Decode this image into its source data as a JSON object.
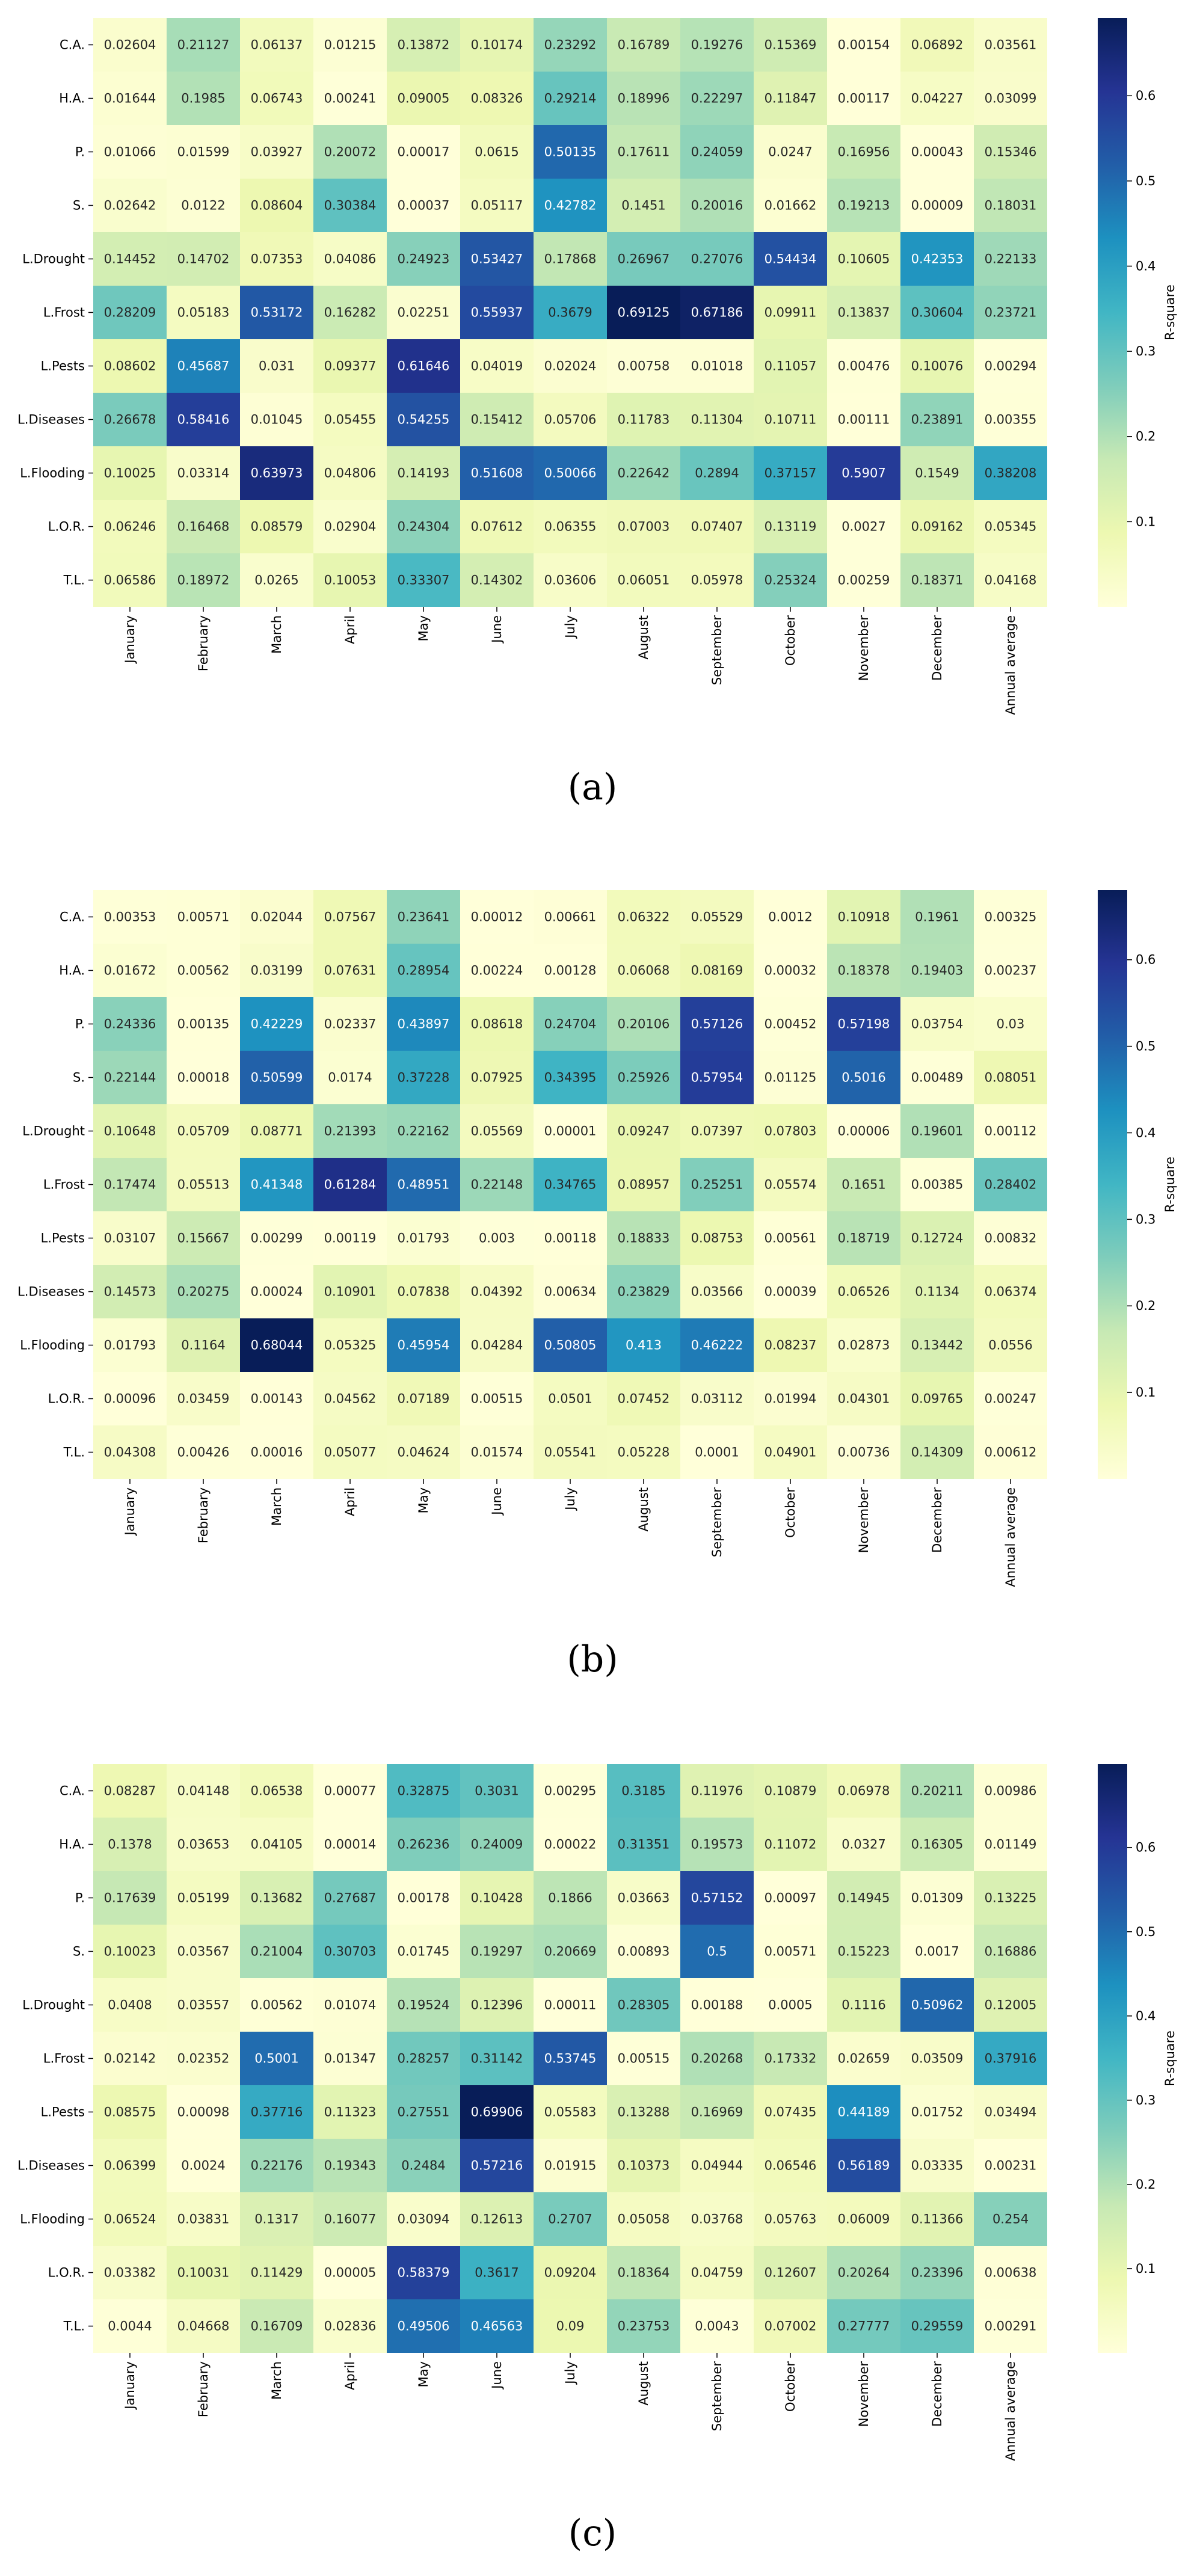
{
  "rows": [
    "C.A.",
    "H.A.",
    "P.",
    "S.",
    "L.Drought",
    "L.Frost",
    "L.Pests",
    "L.Diseases",
    "L.Flooding",
    "L.O.R.",
    "T.L."
  ],
  "columns": [
    "January",
    "February",
    "March",
    "April",
    "May",
    "June",
    "July",
    "August",
    "September",
    "October",
    "November",
    "December",
    "Annual average"
  ],
  "colorbar_label": "R-square",
  "colorbar_ticks": [
    "0.1",
    "0.2",
    "0.3",
    "0.4",
    "0.5",
    "0.6"
  ],
  "colors": {
    "low": "#ffffd9",
    "high": "#081d58"
  },
  "chart_data": [
    {
      "type": "heatmap",
      "caption": "(a)",
      "vmin": 0,
      "vmax": 0.69125,
      "values": [
        [
          "0.02604",
          "0.21127",
          "0.06137",
          "0.01215",
          "0.13872",
          "0.10174",
          "0.23292",
          "0.16789",
          "0.19276",
          "0.15369",
          "0.00154",
          "0.06892",
          "0.03561"
        ],
        [
          "0.01644",
          "0.1985",
          "0.06743",
          "0.00241",
          "0.09005",
          "0.08326",
          "0.29214",
          "0.18996",
          "0.22297",
          "0.11847",
          "0.00117",
          "0.04227",
          "0.03099"
        ],
        [
          "0.01066",
          "0.01599",
          "0.03927",
          "0.20072",
          "0.00017",
          "0.0615",
          "0.50135",
          "0.17611",
          "0.24059",
          "0.0247",
          "0.16956",
          "0.00043",
          "0.15346"
        ],
        [
          "0.02642",
          "0.0122",
          "0.08604",
          "0.30384",
          "0.00037",
          "0.05117",
          "0.42782",
          "0.1451",
          "0.20016",
          "0.01662",
          "0.19213",
          "0.00009",
          "0.18031"
        ],
        [
          "0.14452",
          "0.14702",
          "0.07353",
          "0.04086",
          "0.24923",
          "0.53427",
          "0.17868",
          "0.26967",
          "0.27076",
          "0.54434",
          "0.10605",
          "0.42353",
          "0.22133"
        ],
        [
          "0.28209",
          "0.05183",
          "0.53172",
          "0.16282",
          "0.02251",
          "0.55937",
          "0.3679",
          "0.69125",
          "0.67186",
          "0.09911",
          "0.13837",
          "0.30604",
          "0.23721"
        ],
        [
          "0.08602",
          "0.45687",
          "0.031",
          "0.09377",
          "0.61646",
          "0.04019",
          "0.02024",
          "0.00758",
          "0.01018",
          "0.11057",
          "0.00476",
          "0.10076",
          "0.00294"
        ],
        [
          "0.26678",
          "0.58416",
          "0.01045",
          "0.05455",
          "0.54255",
          "0.15412",
          "0.05706",
          "0.11783",
          "0.11304",
          "0.10711",
          "0.00111",
          "0.23891",
          "0.00355"
        ],
        [
          "0.10025",
          "0.03314",
          "0.63973",
          "0.04806",
          "0.14193",
          "0.51608",
          "0.50066",
          "0.22642",
          "0.2894",
          "0.37157",
          "0.5907",
          "0.1549",
          "0.38208"
        ],
        [
          "0.06246",
          "0.16468",
          "0.08579",
          "0.02904",
          "0.24304",
          "0.07612",
          "0.06355",
          "0.07003",
          "0.07407",
          "0.13119",
          "0.0027",
          "0.09162",
          "0.05345"
        ],
        [
          "0.06586",
          "0.18972",
          "0.0265",
          "0.10053",
          "0.33307",
          "0.14302",
          "0.03606",
          "0.06051",
          "0.05978",
          "0.25324",
          "0.00259",
          "0.18371",
          "0.04168"
        ]
      ]
    },
    {
      "type": "heatmap",
      "caption": "(b)",
      "vmin": 0,
      "vmax": 0.68044,
      "values": [
        [
          "0.00353",
          "0.00571",
          "0.02044",
          "0.07567",
          "0.23641",
          "0.00012",
          "0.00661",
          "0.06322",
          "0.05529",
          "0.0012",
          "0.10918",
          "0.1961",
          "0.00325"
        ],
        [
          "0.01672",
          "0.00562",
          "0.03199",
          "0.07631",
          "0.28954",
          "0.00224",
          "0.00128",
          "0.06068",
          "0.08169",
          "0.00032",
          "0.18378",
          "0.19403",
          "0.00237"
        ],
        [
          "0.24336",
          "0.00135",
          "0.42229",
          "0.02337",
          "0.43897",
          "0.08618",
          "0.24704",
          "0.20106",
          "0.57126",
          "0.00452",
          "0.57198",
          "0.03754",
          "0.03"
        ],
        [
          "0.22144",
          "0.00018",
          "0.50599",
          "0.0174",
          "0.37228",
          "0.07925",
          "0.34395",
          "0.25926",
          "0.57954",
          "0.01125",
          "0.5016",
          "0.00489",
          "0.08051"
        ],
        [
          "0.10648",
          "0.05709",
          "0.08771",
          "0.21393",
          "0.22162",
          "0.05569",
          "0.00001",
          "0.09247",
          "0.07397",
          "0.07803",
          "0.00006",
          "0.19601",
          "0.00112"
        ],
        [
          "0.17474",
          "0.05513",
          "0.41348",
          "0.61284",
          "0.48951",
          "0.22148",
          "0.34765",
          "0.08957",
          "0.25251",
          "0.05574",
          "0.1651",
          "0.00385",
          "0.28402"
        ],
        [
          "0.03107",
          "0.15667",
          "0.00299",
          "0.00119",
          "0.01793",
          "0.003",
          "0.00118",
          "0.18833",
          "0.08753",
          "0.00561",
          "0.18719",
          "0.12724",
          "0.00832"
        ],
        [
          "0.14573",
          "0.20275",
          "0.00024",
          "0.10901",
          "0.07838",
          "0.04392",
          "0.00634",
          "0.23829",
          "0.03566",
          "0.00039",
          "0.06526",
          "0.1134",
          "0.06374"
        ],
        [
          "0.01793",
          "0.1164",
          "0.68044",
          "0.05325",
          "0.45954",
          "0.04284",
          "0.50805",
          "0.413",
          "0.46222",
          "0.08237",
          "0.02873",
          "0.13442",
          "0.0556"
        ],
        [
          "0.00096",
          "0.03459",
          "0.00143",
          "0.04562",
          "0.07189",
          "0.00515",
          "0.0501",
          "0.07452",
          "0.03112",
          "0.01994",
          "0.04301",
          "0.09765",
          "0.00247"
        ],
        [
          "0.04308",
          "0.00426",
          "0.00016",
          "0.05077",
          "0.04624",
          "0.01574",
          "0.05541",
          "0.05228",
          "0.0001",
          "0.04901",
          "0.00736",
          "0.14309",
          "0.00612"
        ]
      ]
    },
    {
      "type": "heatmap",
      "caption": "(c)",
      "vmin": 0,
      "vmax": 0.69906,
      "values": [
        [
          "0.08287",
          "0.04148",
          "0.06538",
          "0.00077",
          "0.32875",
          "0.3031",
          "0.00295",
          "0.3185",
          "0.11976",
          "0.10879",
          "0.06978",
          "0.20211",
          "0.00986"
        ],
        [
          "0.1378",
          "0.03653",
          "0.04105",
          "0.00014",
          "0.26236",
          "0.24009",
          "0.00022",
          "0.31351",
          "0.19573",
          "0.11072",
          "0.0327",
          "0.16305",
          "0.01149"
        ],
        [
          "0.17639",
          "0.05199",
          "0.13682",
          "0.27687",
          "0.00178",
          "0.10428",
          "0.1866",
          "0.03663",
          "0.57152",
          "0.00097",
          "0.14945",
          "0.01309",
          "0.13225"
        ],
        [
          "0.10023",
          "0.03567",
          "0.21004",
          "0.30703",
          "0.01745",
          "0.19297",
          "0.20669",
          "0.00893",
          "0.5",
          "0.00571",
          "0.15223",
          "0.0017",
          "0.16886"
        ],
        [
          "0.0408",
          "0.03557",
          "0.00562",
          "0.01074",
          "0.19524",
          "0.12396",
          "0.00011",
          "0.28305",
          "0.00188",
          "0.0005",
          "0.1116",
          "0.50962",
          "0.12005"
        ],
        [
          "0.02142",
          "0.02352",
          "0.5001",
          "0.01347",
          "0.28257",
          "0.31142",
          "0.53745",
          "0.00515",
          "0.20268",
          "0.17332",
          "0.02659",
          "0.03509",
          "0.37916"
        ],
        [
          "0.08575",
          "0.00098",
          "0.37716",
          "0.11323",
          "0.27551",
          "0.69906",
          "0.05583",
          "0.13288",
          "0.16969",
          "0.07435",
          "0.44189",
          "0.01752",
          "0.03494"
        ],
        [
          "0.06399",
          "0.0024",
          "0.22176",
          "0.19343",
          "0.2484",
          "0.57216",
          "0.01915",
          "0.10373",
          "0.04944",
          "0.06546",
          "0.56189",
          "0.03335",
          "0.00231"
        ],
        [
          "0.06524",
          "0.03831",
          "0.1317",
          "0.16077",
          "0.03094",
          "0.12613",
          "0.2707",
          "0.05058",
          "0.03768",
          "0.05763",
          "0.06009",
          "0.11366",
          "0.254"
        ],
        [
          "0.03382",
          "0.10031",
          "0.11429",
          "0.00005",
          "0.58379",
          "0.3617",
          "0.09204",
          "0.18364",
          "0.04759",
          "0.12607",
          "0.20264",
          "0.23396",
          "0.00638"
        ],
        [
          "0.0044",
          "0.04668",
          "0.16709",
          "0.02836",
          "0.49506",
          "0.46563",
          "0.09",
          "0.23753",
          "0.0043",
          "0.07002",
          "0.27777",
          "0.29559",
          "0.00291"
        ]
      ]
    }
  ]
}
